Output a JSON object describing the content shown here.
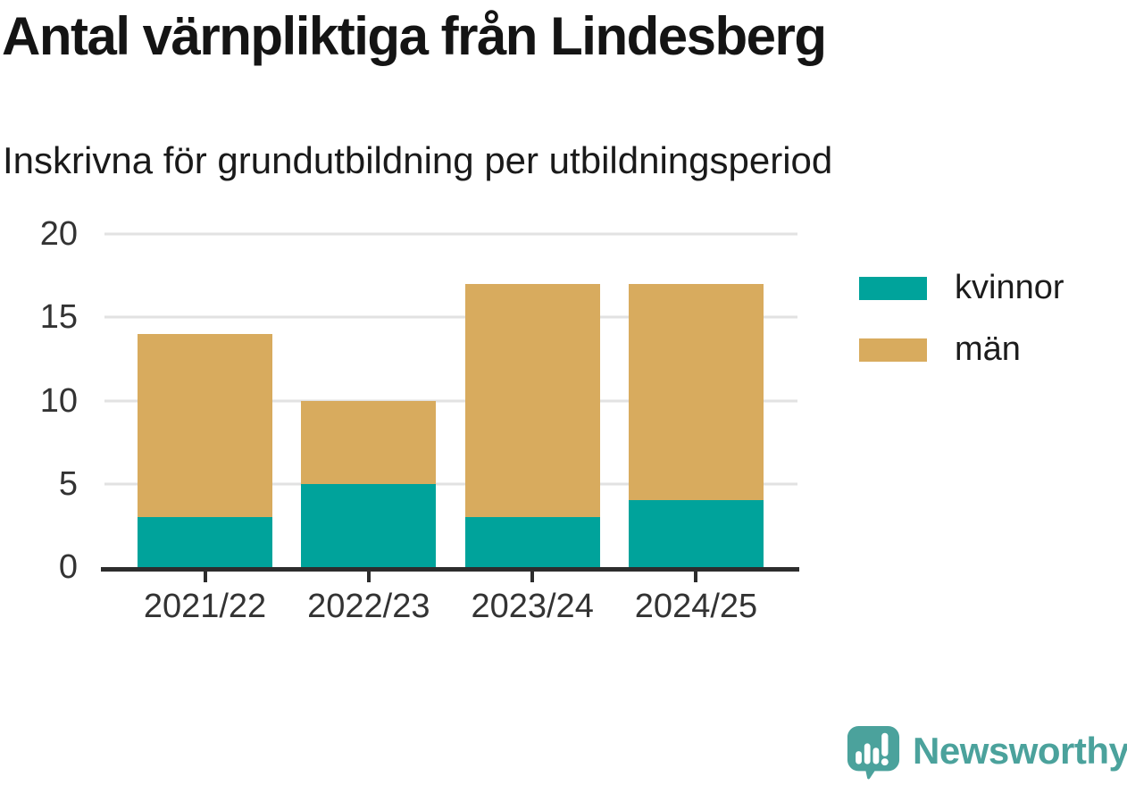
{
  "chart_data": {
    "type": "bar",
    "stacked": true,
    "title": "Antal värnpliktiga från Lindesberg",
    "subtitle": "Inskrivna för grundutbildning per utbildningsperiod",
    "categories": [
      "2021/22",
      "2022/23",
      "2023/24",
      "2024/25"
    ],
    "series": [
      {
        "name": "kvinnor",
        "color": "#00a39b",
        "values": [
          3,
          5,
          3,
          4
        ]
      },
      {
        "name": "män",
        "color": "#d8ab5e",
        "values": [
          11,
          5,
          14,
          13
        ]
      }
    ],
    "stacked_totals": [
      14,
      10,
      17,
      17
    ],
    "xlabel": "",
    "ylabel": "",
    "ylim": [
      0,
      20
    ],
    "yticks": [
      0,
      5,
      10,
      15,
      20
    ],
    "grid": true,
    "legend_position": "right"
  },
  "footer": {
    "brand": "Newsworthy",
    "brand_color": "#4ba29c",
    "logo_icon": "speech-bubble-bar-chart-icon"
  }
}
